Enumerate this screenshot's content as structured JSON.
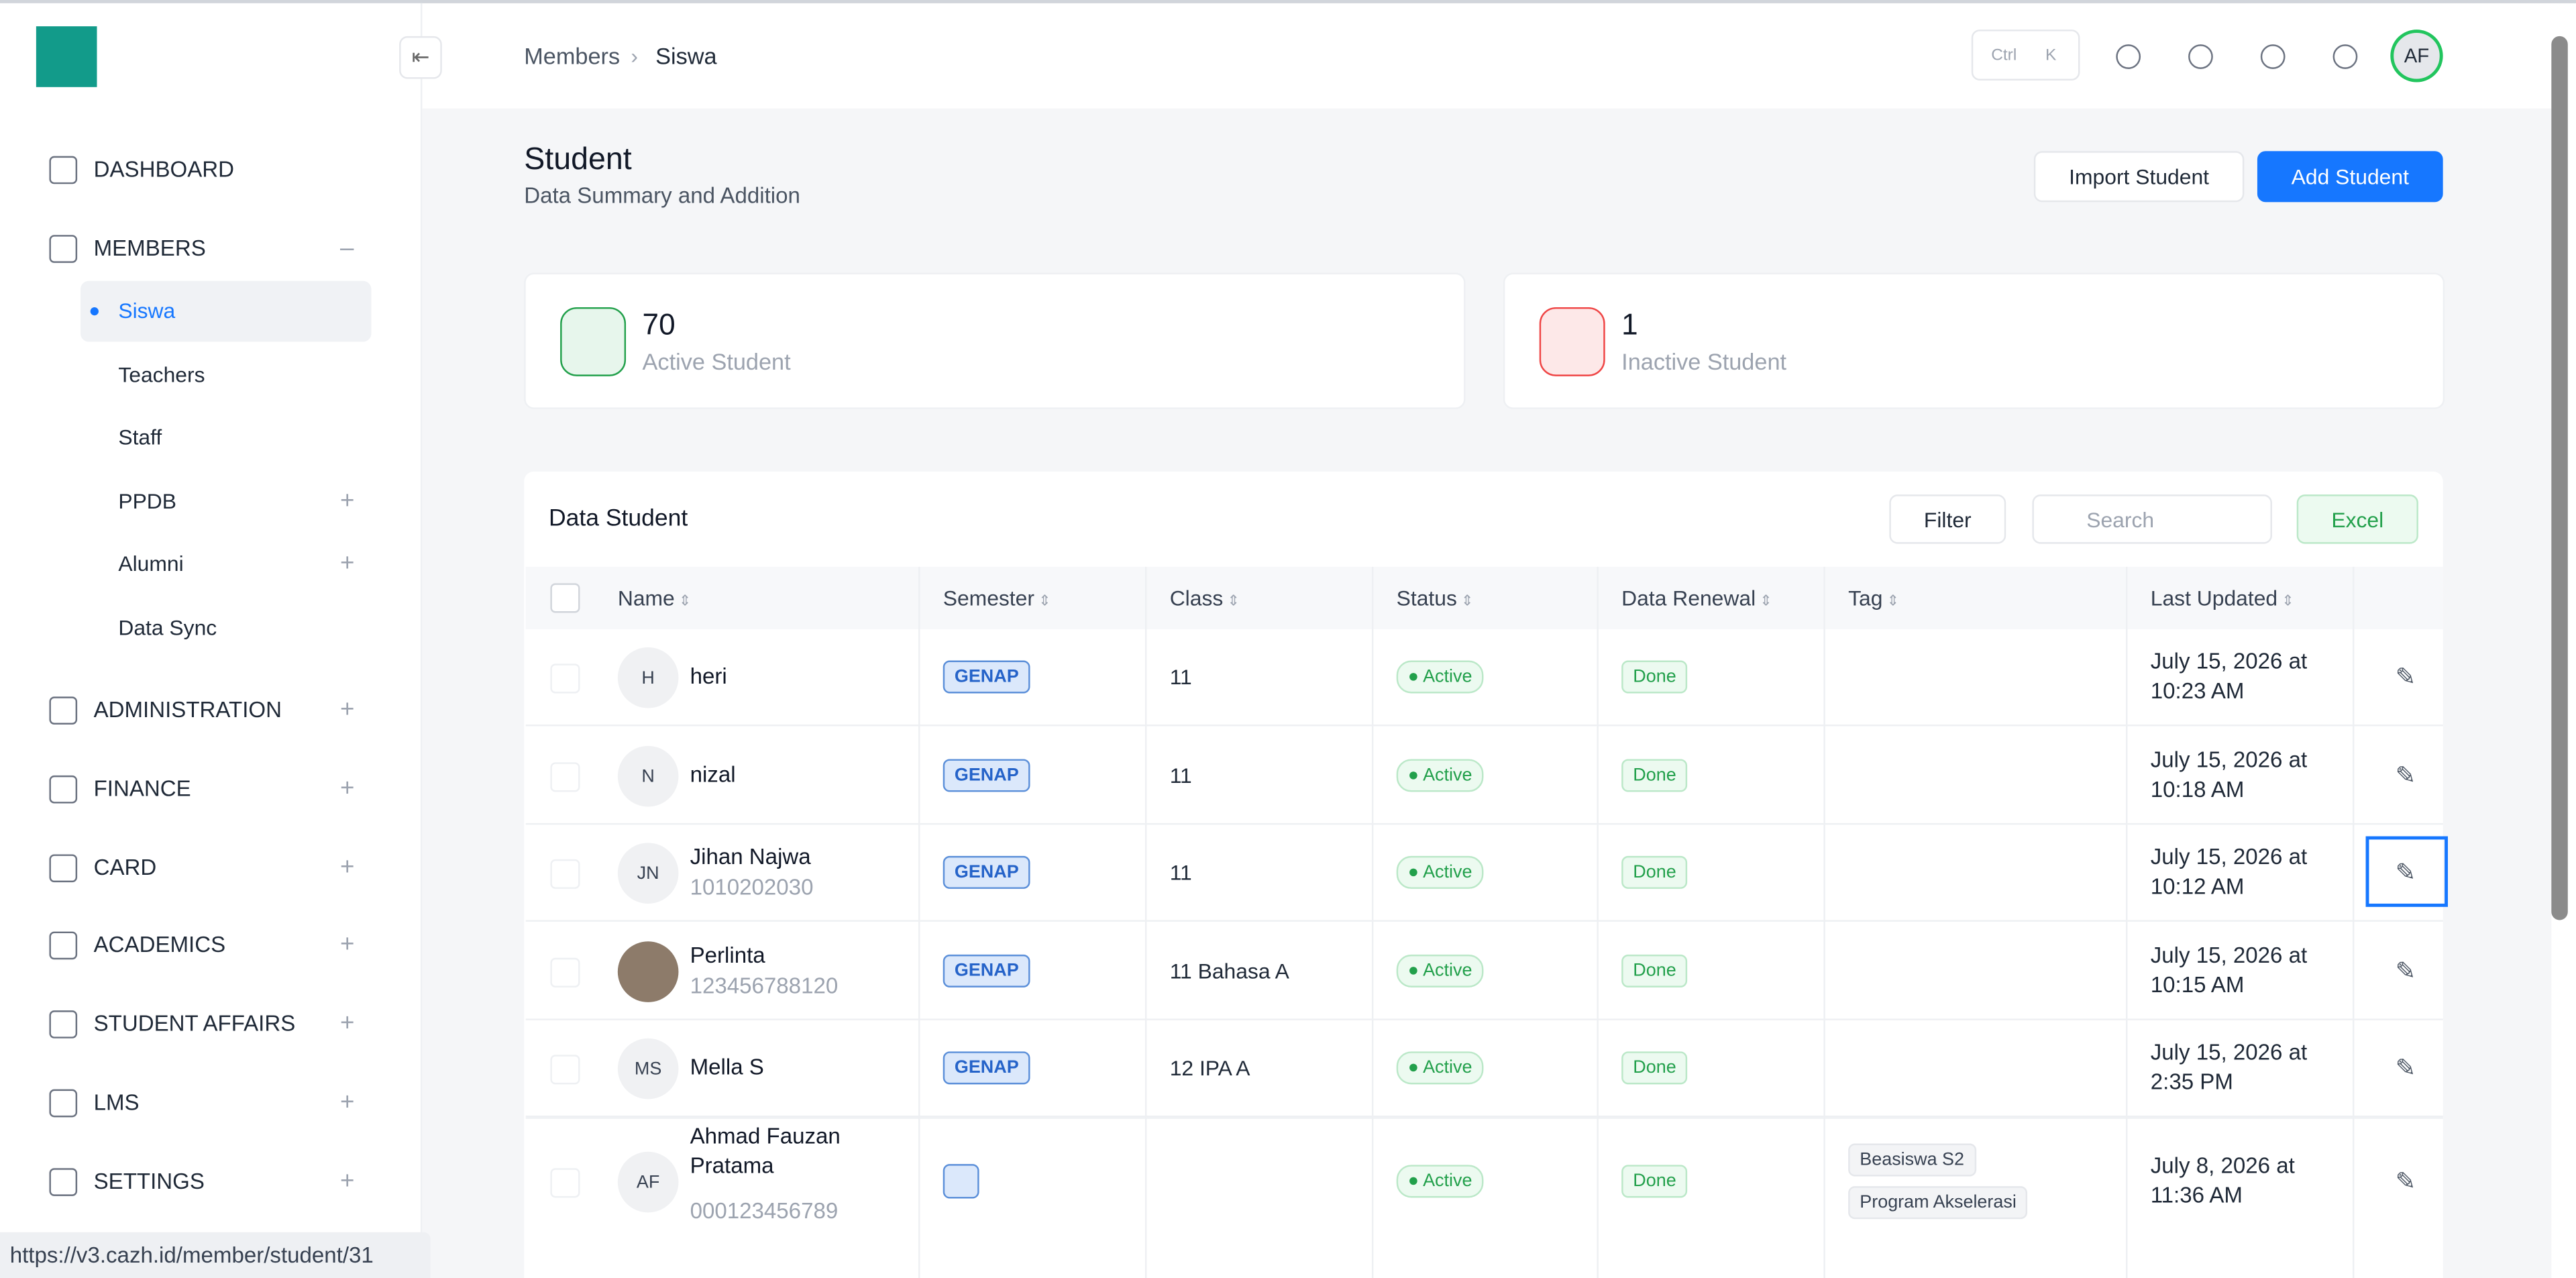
{
  "sidebar": {
    "nav": [
      {
        "label": "DASHBOARD"
      },
      {
        "label": "MEMBERS",
        "children": [
          {
            "label": "Siswa"
          },
          {
            "label": "Teachers"
          },
          {
            "label": "Staff"
          },
          {
            "label": "PPDB"
          },
          {
            "label": "Alumni"
          },
          {
            "label": "Data Sync"
          }
        ]
      },
      {
        "label": "ADMINISTRATION"
      },
      {
        "label": "FINANCE"
      },
      {
        "label": "CARD"
      },
      {
        "label": "ACADEMICS"
      },
      {
        "label": "STUDENT AFFAIRS"
      },
      {
        "label": "LMS"
      },
      {
        "label": "SETTINGS"
      }
    ]
  },
  "header": {
    "breadcrumb": [
      "Members",
      "Siswa"
    ],
    "shortcut": [
      "Ctrl",
      "K"
    ],
    "avatar": "AF"
  },
  "page": {
    "title": "Student",
    "subtitle": "Data Summary and Addition",
    "import_button": "Import Student",
    "add_button": "Add Student"
  },
  "stats": [
    {
      "value": 70,
      "label": "Active Student"
    },
    {
      "value": 1,
      "label": "Inactive Student"
    }
  ],
  "table": {
    "title": "Data Student",
    "filter": "Filter",
    "search_placeholder": "Search",
    "export": "Excel",
    "columns": [
      "Name",
      "Semester",
      "Class",
      "Status",
      "Data Renewal",
      "Tag",
      "Last Updated"
    ],
    "rows": [
      {
        "initials": "H",
        "name": "heri",
        "semester": "GENAP",
        "class": "11",
        "status": "Active",
        "renewal": "Done",
        "tags": [],
        "updated": "July 15, 2026 at 10:23 AM"
      },
      {
        "initials": "N",
        "name": "nizal",
        "semester": "GENAP",
        "class": "11",
        "status": "Active",
        "renewal": "Done",
        "tags": [],
        "updated": "July 15, 2026 at 10:18 AM"
      },
      {
        "initials": "JN",
        "name": "Jihan Najwa",
        "id": "1010202030",
        "semester": "GENAP",
        "class": "11",
        "status": "Active",
        "renewal": "Done",
        "tags": [],
        "updated": "July 15, 2026 at 10:12 AM"
      },
      {
        "name": "Perlinta",
        "id": "123456788120",
        "semester": "GENAP",
        "class": "11 Bahasa A",
        "status": "Active",
        "renewal": "Done",
        "tags": [],
        "updated": "July 15, 2026 at 10:15 AM"
      },
      {
        "initials": "MS",
        "name": "Mella S",
        "semester": "GENAP",
        "class": "12 IPA A",
        "status": "Active",
        "renewal": "Done",
        "tags": [],
        "updated": "July 15, 2026 at 2:35 PM"
      },
      {
        "initials": "AF",
        "name": "Ahmad Fauzan Pratama",
        "id": "000123456789",
        "semester": null,
        "class": null,
        "status": "Active",
        "renewal": "Done",
        "tags": [
          "Beasiswa S2",
          "Program Akselerasi"
        ],
        "updated": "July 8, 2026 at 11:36 AM"
      }
    ]
  },
  "status_bar": {
    "url": "https://v3.cazh.id/member/student/31"
  }
}
